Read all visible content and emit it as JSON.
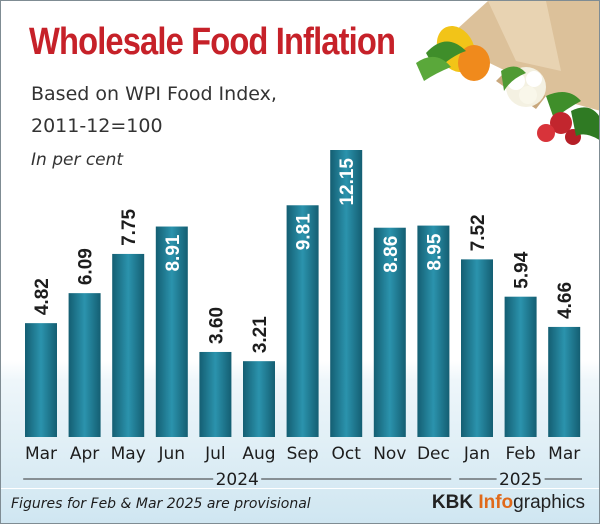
{
  "title": "Wholesale Food Inflation",
  "subtitle_line1": "Based on WPI Food Index,",
  "subtitle_line2": "2011-12=100",
  "unit": "In per cent",
  "footnote": "Figures for Feb & Mar 2025 are provisional",
  "brand": {
    "prefix": "KBK ",
    "highlight": "Info",
    "suffix": "graphics"
  },
  "colors": {
    "title": "#c62129",
    "bar": "#1a7188",
    "bar_light": "#2b93ad",
    "brand_accent": "#e06a1b"
  },
  "icon": "grocery-bag-with-vegetables-icon",
  "chart_data": {
    "type": "bar",
    "categories": [
      "Mar",
      "Apr",
      "May",
      "Jun",
      "Jul",
      "Aug",
      "Sep",
      "Oct",
      "Nov",
      "Dec",
      "Jan",
      "Feb",
      "Mar"
    ],
    "values": [
      4.82,
      6.09,
      7.75,
      8.91,
      3.6,
      3.21,
      9.81,
      12.15,
      8.86,
      8.95,
      7.52,
      5.94,
      4.66
    ],
    "value_labels": [
      "4.82",
      "6.09",
      "7.75",
      "8.91",
      "3.60",
      "3.21",
      "9.81",
      "12.15",
      "8.86",
      "8.95",
      "7.52",
      "5.94",
      "4.66"
    ],
    "year_groups": [
      {
        "label": "2024",
        "from": 0,
        "to": 9
      },
      {
        "label": "2025",
        "from": 10,
        "to": 12
      }
    ],
    "title": "Wholesale Food Inflation",
    "xlabel": "",
    "ylabel": "In per cent",
    "ylim": [
      0,
      12.15
    ],
    "grid": false,
    "legend": "none"
  }
}
